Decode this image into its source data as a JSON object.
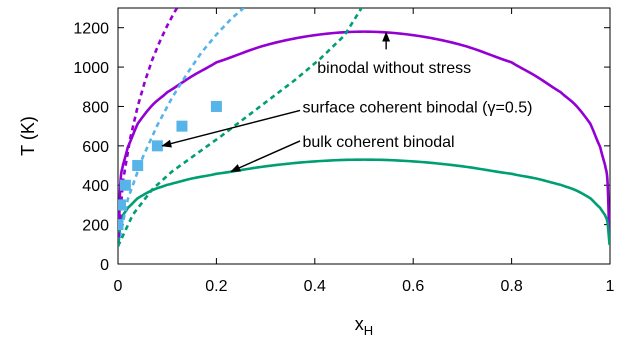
{
  "chart_data": {
    "type": "line",
    "xlabel": "x",
    "xlabel_sub": "H",
    "ylabel": "T (K)",
    "xlim": [
      0,
      1
    ],
    "ylim": [
      0,
      1300
    ],
    "x_ticks": [
      0,
      0.2,
      0.4,
      0.6,
      0.8,
      1
    ],
    "x_tick_labels": [
      "0",
      "0.2",
      "0.4",
      "0.6",
      "0.8",
      "1"
    ],
    "y_ticks": [
      0,
      200,
      400,
      600,
      800,
      1000,
      1200
    ],
    "y_tick_labels": [
      "0",
      "200",
      "400",
      "600",
      "800",
      "1000",
      "1200"
    ],
    "grid": false,
    "series": [
      {
        "name": "binodal without stress",
        "color": "#9400d3",
        "style": "solid",
        "peak": 1180,
        "x": [
          0.0005,
          0.005,
          0.01,
          0.02,
          0.04,
          0.07,
          0.1,
          0.15,
          0.2,
          0.3,
          0.4,
          0.5,
          0.6,
          0.7,
          0.8,
          0.85,
          0.9,
          0.93,
          0.96,
          0.98,
          0.99,
          0.995,
          0.9995
        ],
        "y": [
          97,
          417,
          502,
          594,
          712,
          807,
          872,
          953,
          1024,
          1111,
          1162,
          1180,
          1162,
          1111,
          1024,
          953,
          872,
          807,
          712,
          594,
          502,
          417,
          97
        ]
      },
      {
        "name": "bulk coherent binodal",
        "color": "#009e73",
        "style": "solid",
        "peak": 530,
        "x": [
          0.0005,
          0.005,
          0.01,
          0.02,
          0.04,
          0.07,
          0.1,
          0.15,
          0.2,
          0.3,
          0.4,
          0.5,
          0.6,
          0.7,
          0.8,
          0.85,
          0.9,
          0.93,
          0.96,
          0.98,
          0.99,
          0.995,
          0.9995
        ],
        "y": [
          97,
          210,
          248,
          285,
          334,
          375,
          402,
          434,
          458,
          496,
          521,
          530,
          521,
          496,
          458,
          434,
          402,
          375,
          334,
          285,
          248,
          210,
          97
        ]
      },
      {
        "name": "surface coherent binodal (γ=0.5)",
        "color": "#56b4e9",
        "style": "dashed",
        "x": [
          0.0,
          0.02,
          0.05,
          0.08,
          0.11,
          0.14,
          0.17,
          0.2,
          0.23,
          0.26,
          0.28
        ],
        "y": [
          90,
          330,
          540,
          705,
          845,
          965,
          1075,
          1165,
          1245,
          1310,
          1350
        ]
      },
      {
        "name": "",
        "color": "#9400d3",
        "style": "dashed",
        "x": [
          0.0,
          0.01,
          0.025,
          0.04,
          0.055,
          0.07,
          0.085,
          0.1,
          0.115,
          0.13
        ],
        "y": [
          90,
          420,
          640,
          800,
          930,
          1040,
          1130,
          1210,
          1280,
          1340
        ]
      },
      {
        "name": "",
        "color": "#009e73",
        "style": "dashed",
        "x": [
          0.0,
          0.03,
          0.07,
          0.11,
          0.16,
          0.21,
          0.26,
          0.31,
          0.36,
          0.41,
          0.46,
          0.5
        ],
        "y": [
          90,
          250,
          380,
          470,
          560,
          650,
          745,
          840,
          935,
          1040,
          1160,
          1320
        ]
      }
    ],
    "scatter": {
      "color": "#56b4e9",
      "x": [
        0.0,
        0.005,
        0.015,
        0.04,
        0.08,
        0.13,
        0.2
      ],
      "y": [
        200,
        300,
        400,
        500,
        600,
        700,
        800
      ]
    },
    "annotations": [
      {
        "text": "binodal without stress",
        "tail": [
          0.545,
          1090
        ],
        "head": [
          0.545,
          1175
        ],
        "text_at": [
          0.405,
          1000
        ]
      },
      {
        "text": "surface coherent binodal (γ=0.5)",
        "tail": [
          0.37,
          780
        ],
        "head": [
          0.09,
          600
        ],
        "text_at": [
          0.375,
          800
        ]
      },
      {
        "text": "bulk coherent binodal",
        "tail": [
          0.37,
          625
        ],
        "head": [
          0.23,
          470
        ],
        "text_at": [
          0.375,
          625
        ]
      }
    ]
  }
}
